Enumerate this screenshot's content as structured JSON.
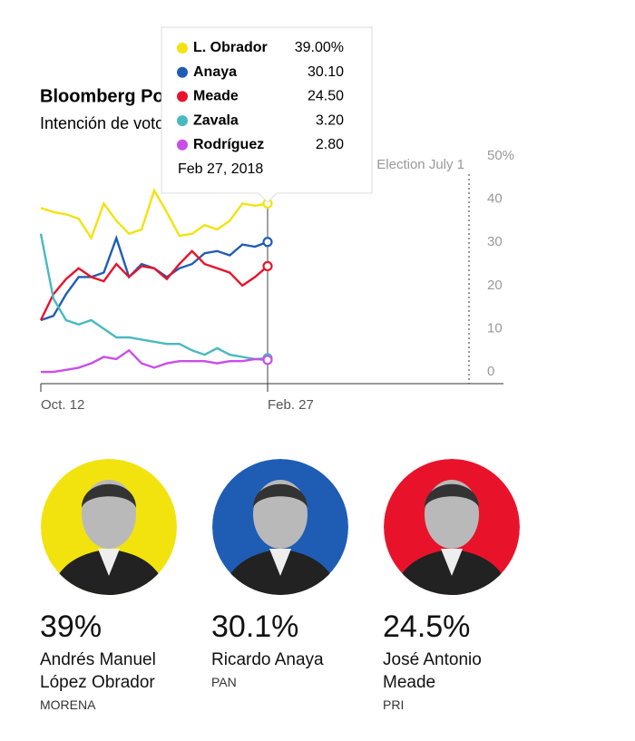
{
  "chart_data": {
    "type": "line",
    "title": "Bloomberg Poll Tracker",
    "subtitle": "Intención de voto relativa",
    "categories": [
      "Oct. 12",
      null,
      null,
      null,
      null,
      null,
      null,
      null,
      null,
      null,
      null,
      null,
      null,
      null,
      null,
      null,
      null,
      null,
      "Feb. 27"
    ],
    "series": [
      {
        "name": "L. Obrador",
        "color": "#f2e30f",
        "values": [
          38,
          37,
          36.5,
          35.5,
          31,
          39,
          35,
          32,
          33,
          42,
          37,
          31.5,
          32,
          34,
          33,
          35,
          39,
          38.5,
          39
        ]
      },
      {
        "name": "Anaya",
        "color": "#1f5db5",
        "values": [
          12,
          13,
          18,
          22,
          22,
          23,
          31,
          22,
          25,
          24,
          22,
          24,
          25,
          27.5,
          28,
          27,
          29.5,
          29,
          30.1
        ]
      },
      {
        "name": "Meade",
        "color": "#e8132b",
        "values": [
          12,
          18,
          21.5,
          24,
          22,
          21,
          25,
          22,
          24.5,
          24,
          21.5,
          25,
          28,
          25,
          24,
          23,
          20,
          22,
          24.5
        ]
      },
      {
        "name": "Zavala",
        "color": "#48b9bf",
        "values": [
          32,
          17,
          12,
          11,
          12,
          10,
          8,
          8,
          7.5,
          7,
          6.5,
          6.5,
          5,
          4,
          5.5,
          4,
          3.5,
          3,
          3.2
        ]
      },
      {
        "name": "Rodríguez",
        "color": "#c94ee8",
        "values": [
          0,
          0,
          0.5,
          1,
          2,
          3.5,
          3,
          5,
          2,
          1,
          2,
          2.5,
          2.5,
          2.5,
          2,
          2.5,
          2.5,
          3,
          2.8
        ]
      }
    ],
    "ylim": [
      -2.7,
      50
    ],
    "yticks": [
      0,
      10,
      20,
      30,
      40,
      {
        "value": 50,
        "label": "50%"
      }
    ],
    "annotation": "Election July 1",
    "tooltip": {
      "date": "Feb 27, 2018",
      "values": [
        39,
        30.1,
        24.5,
        3.2,
        2.8
      ],
      "value_labels": [
        "39.00%",
        "30.10",
        "24.50",
        "3.20",
        "2.80"
      ]
    }
  },
  "candidates": [
    {
      "share": "39%",
      "name": "Andrés Manuel López Obrador",
      "party": "MORENA"
    },
    {
      "share": "30.1%",
      "name": "Ricardo Anaya",
      "party": "PAN"
    },
    {
      "share": "24.5%",
      "name": "José Antonio Meade",
      "party": "PRI"
    }
  ]
}
